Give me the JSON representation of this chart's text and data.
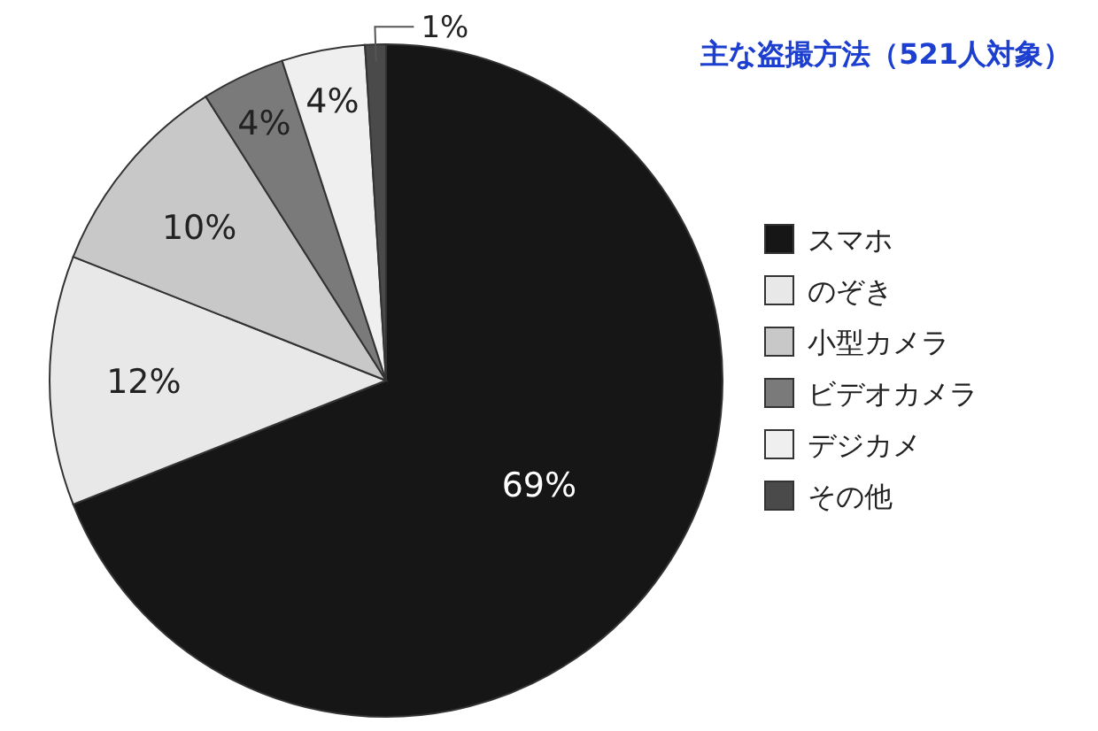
{
  "chart_data": {
    "type": "pie",
    "title": "主な盗撮方法（521人対象）",
    "categories": [
      "スマホ",
      "のぞき",
      "小型カメラ",
      "ビデオカメラ",
      "デジカメ",
      "その他"
    ],
    "values": [
      69,
      12,
      10,
      4,
      4,
      1
    ],
    "colors": [
      "#161616",
      "#e8e8e8",
      "#c8c8c8",
      "#7a7a7a",
      "#efefef",
      "#4a4a4a"
    ],
    "value_labels": [
      "69%",
      "12%",
      "10%",
      "4%",
      "4%",
      "1%"
    ],
    "legend": "right"
  }
}
